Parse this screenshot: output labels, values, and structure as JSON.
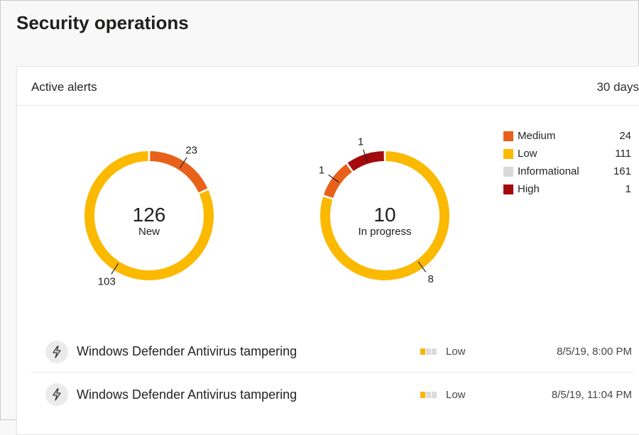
{
  "page": {
    "title": "Security operations"
  },
  "card": {
    "title": "Active alerts",
    "period": "30 days"
  },
  "colors": {
    "Medium": "#e8611a",
    "Low": "#fbb900",
    "Informational": "#d9d9d9",
    "High": "#a4090d"
  },
  "chart_data": [
    {
      "type": "pie",
      "variant": "donut",
      "center_value": "126",
      "center_label": "New",
      "slices": [
        {
          "name": "Medium",
          "value": 23,
          "label": "23"
        },
        {
          "name": "Low",
          "value": 103,
          "label": "103"
        }
      ]
    },
    {
      "type": "pie",
      "variant": "donut",
      "center_value": "10",
      "center_label": "In progress",
      "slices": [
        {
          "name": "Low",
          "value": 8,
          "label": "8"
        },
        {
          "name": "Medium",
          "value": 1,
          "label": "1"
        },
        {
          "name": "High",
          "value": 1,
          "label": "1"
        }
      ]
    }
  ],
  "legend": [
    {
      "label": "Medium",
      "count": "24"
    },
    {
      "label": "Low",
      "count": "111"
    },
    {
      "label": "Informational",
      "count": "161"
    },
    {
      "label": "High",
      "count": "1"
    }
  ],
  "alerts": [
    {
      "icon": "lightning-icon",
      "name": "Windows Defender Antivirus tampering",
      "severity": "Low",
      "severity_level": 1,
      "time": "8/5/19, 8:00 PM"
    },
    {
      "icon": "lightning-icon",
      "name": "Windows Defender Antivirus tampering",
      "severity": "Low",
      "severity_level": 1,
      "time": "8/5/19, 11:04 PM"
    }
  ]
}
